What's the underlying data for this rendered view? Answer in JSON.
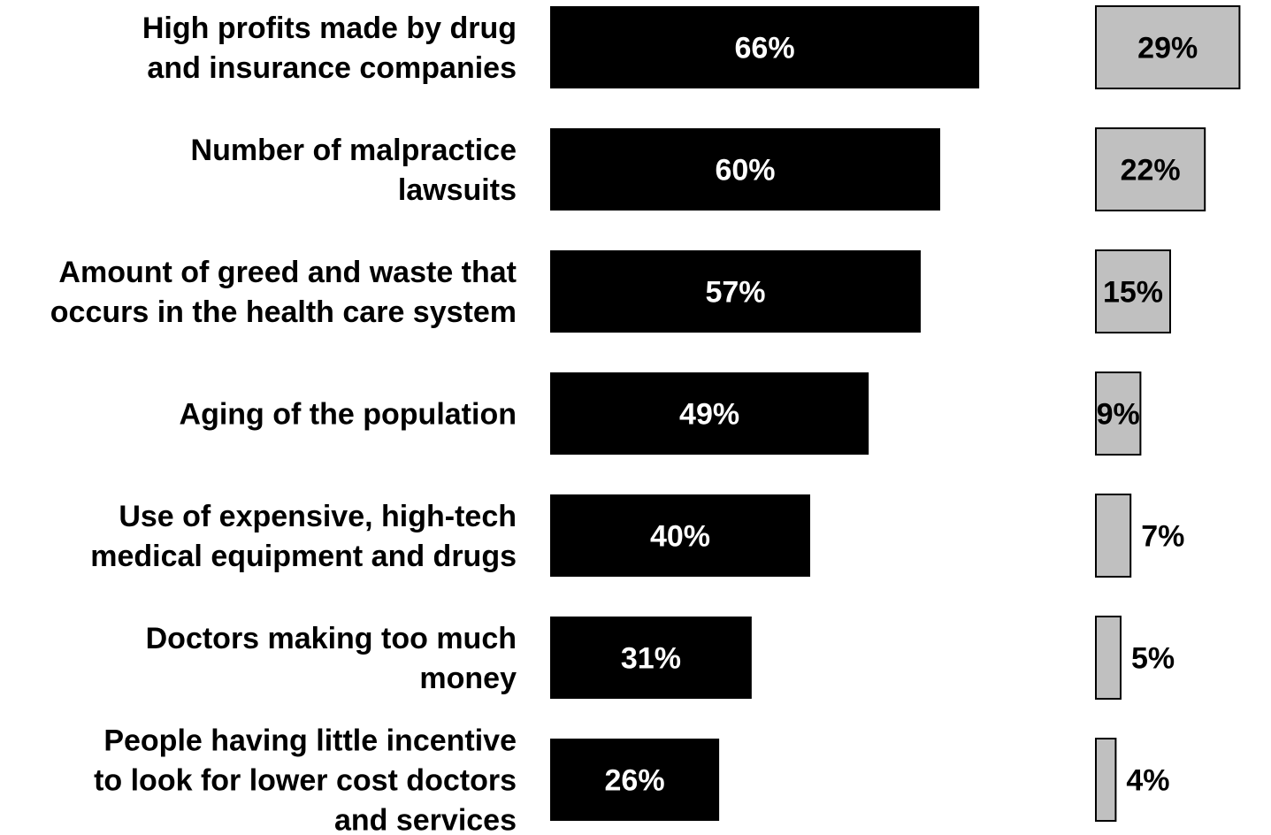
{
  "chart_data": {
    "type": "bar",
    "orientation": "horizontal",
    "categories": [
      [
        "High profits made by drug",
        "and insurance companies"
      ],
      [
        "Number of malpractice",
        "lawsuits"
      ],
      [
        "Amount of greed and waste that",
        "occurs in the health care system"
      ],
      [
        "Aging of the population"
      ],
      [
        "Use of expensive, high-tech",
        "medical equipment and drugs"
      ],
      [
        "Doctors making too much",
        "money"
      ],
      [
        "People having little incentive",
        "to look for lower cost doctors",
        "and services"
      ]
    ],
    "series": [
      {
        "values": [
          66,
          60,
          57,
          49,
          40,
          31,
          26
        ],
        "labels": [
          "66%",
          "60%",
          "57%",
          "49%",
          "40%",
          "31%",
          "26%"
        ],
        "color": "#000000",
        "label_color": "#ffffff"
      },
      {
        "values": [
          29,
          22,
          15,
          9,
          7,
          5,
          4
        ],
        "labels": [
          "29%",
          "22%",
          "15%",
          "9%",
          "7%",
          "5%",
          "4%"
        ],
        "color": "#c0c0c0",
        "label_color": "#000000"
      }
    ],
    "legend": "none",
    "grid": false
  }
}
